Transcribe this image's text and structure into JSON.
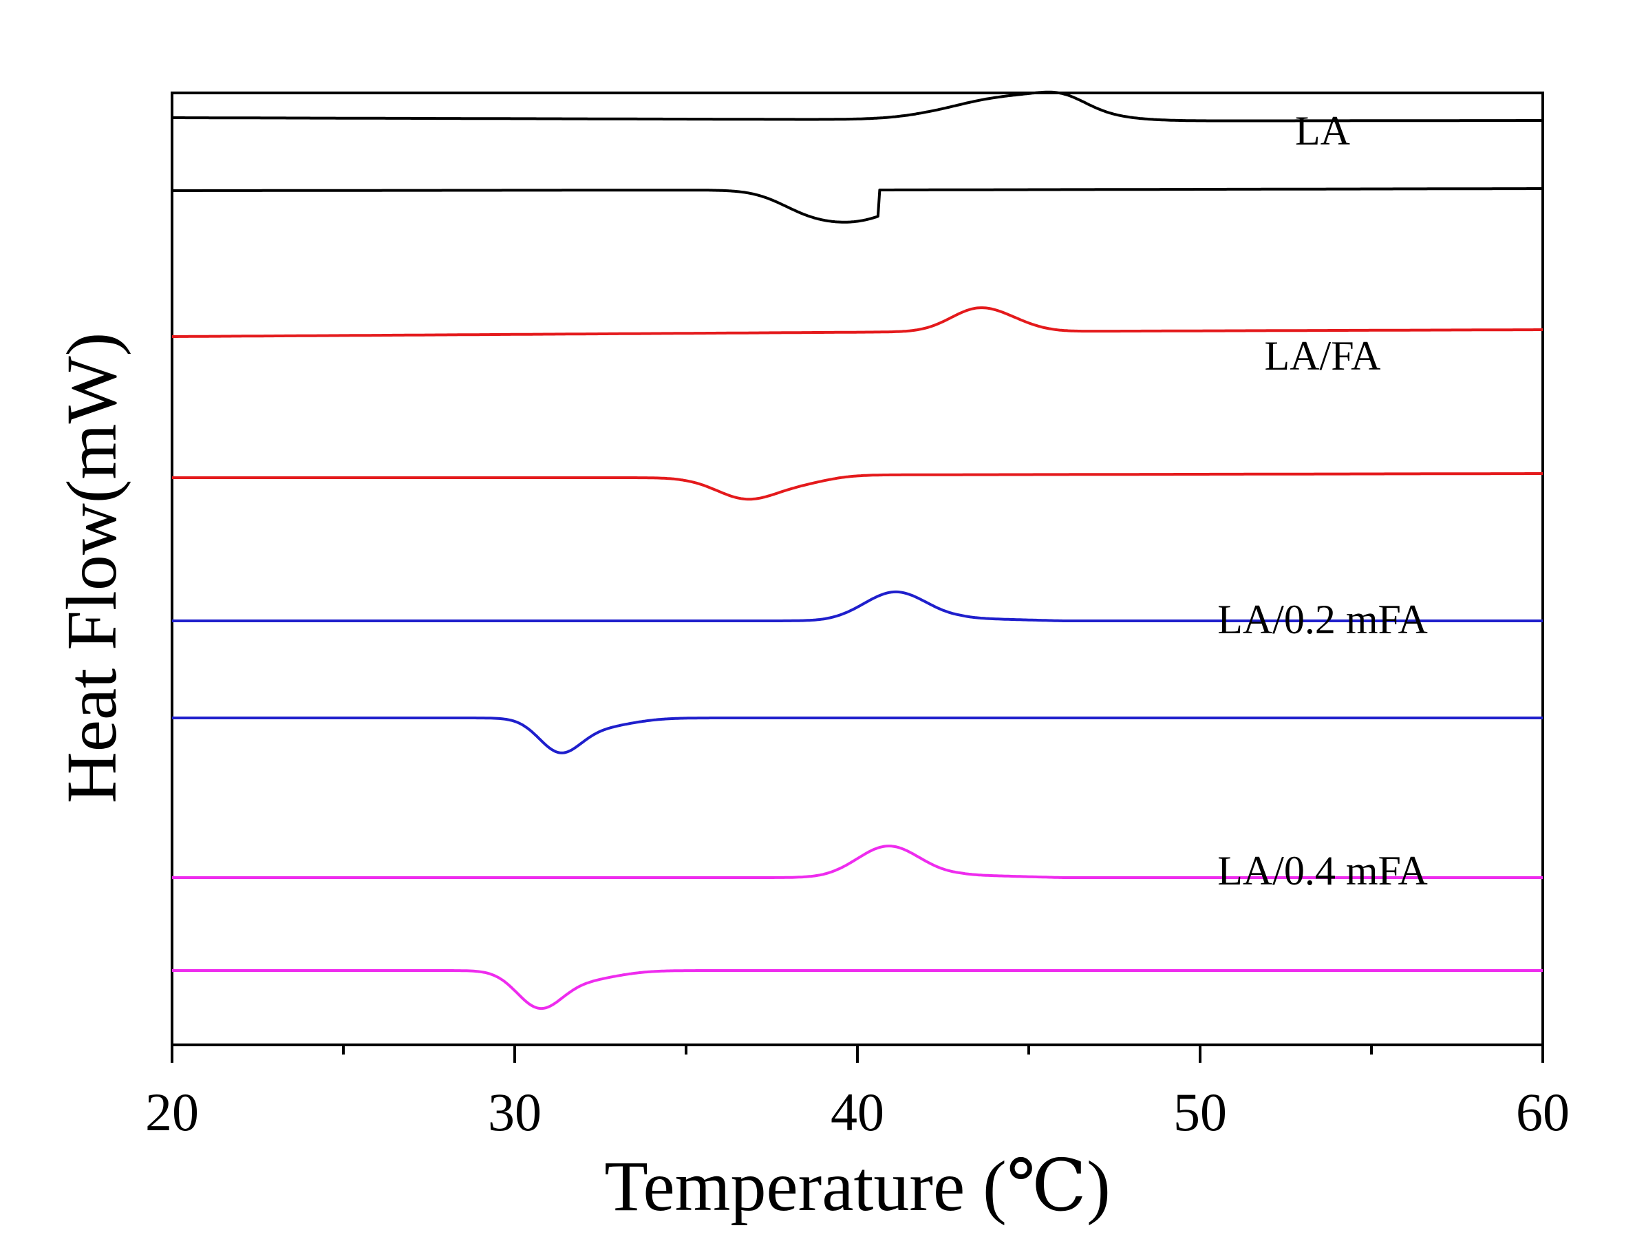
{
  "chart_data": {
    "type": "line",
    "title": "",
    "xlabel": "Temperature (℃)",
    "ylabel": "Heat Flow(mW)",
    "xlim": [
      20,
      60
    ],
    "xticks": [
      20,
      30,
      40,
      50,
      60
    ],
    "minor_xticks": [
      25,
      35,
      45,
      55
    ],
    "grid": false,
    "y_units": "arbitrary offset (curves stacked, y axis has no tick values)",
    "series": [
      {
        "name": "LA",
        "color": "#000000",
        "label": "LA",
        "heating": {
          "baseline": [
            [
              20,
              91
            ],
            [
              42,
              88
            ],
            [
              44,
              86
            ],
            [
              60,
              87
            ]
          ],
          "peaks": [
            {
              "x": 44.6,
              "height": 36,
              "width": 1.7
            },
            {
              "x": 46.0,
              "height": 14,
              "width": 0.7
            }
          ]
        },
        "cooling": {
          "baseline": [
            [
              20,
              0
            ],
            [
              37.5,
              1
            ],
            [
              40.6,
              1
            ],
            [
              60,
              3
            ]
          ],
          "peaks": [
            {
              "x": 39.9,
              "height": -44,
              "width": 1.3
            },
            {
              "x": 38.4,
              "height": -12,
              "width": 0.8
            }
          ],
          "sharp_return_at": 40.6
        }
      },
      {
        "name": "LA/FA",
        "color": "#e41a1c",
        "label": "LA/FA",
        "heating": {
          "baseline": [
            [
              20,
              106
            ],
            [
              42,
              113
            ],
            [
              60,
              116
            ]
          ],
          "peaks": [
            {
              "x": 43.5,
              "height": 32,
              "width": 0.8
            },
            {
              "x": 44.6,
              "height": 8,
              "width": 0.7
            }
          ]
        },
        "cooling": {
          "baseline": [
            [
              20,
              0
            ],
            [
              35,
              0
            ],
            [
              39.5,
              4
            ],
            [
              60,
              6
            ]
          ],
          "peaks": [
            {
              "x": 36.8,
              "height": -32,
              "width": 0.9
            },
            {
              "x": 38.5,
              "height": -8,
              "width": 0.8
            }
          ]
        }
      },
      {
        "name": "LA/0.2 mFA",
        "color": "#1f1fcc",
        "label": "LA/0.2 mFA",
        "heating": {
          "baseline": [
            [
              20,
              76
            ],
            [
              39,
              76
            ],
            [
              43,
              80
            ],
            [
              46,
              76
            ],
            [
              60,
              76
            ]
          ],
          "peaks": [
            {
              "x": 41.1,
              "height": 40,
              "width": 0.9
            }
          ]
        },
        "cooling": {
          "baseline": [
            [
              20,
              0
            ],
            [
              60,
              0
            ]
          ],
          "peaks": [
            {
              "x": 31.3,
              "height": -42,
              "width": 0.6
            },
            {
              "x": 32.3,
              "height": -14,
              "width": 1.0
            }
          ]
        }
      },
      {
        "name": "LA/0.4 mFA",
        "color": "#ee2cee",
        "label": "LA/0.4 mFA",
        "heating": {
          "baseline": [
            [
              20,
              72
            ],
            [
              39,
              72
            ],
            [
              43,
              76
            ],
            [
              46,
              72
            ],
            [
              60,
              72
            ]
          ],
          "peaks": [
            {
              "x": 40.9,
              "height": 44,
              "width": 0.9
            }
          ]
        },
        "cooling": {
          "baseline": [
            [
              20,
              0
            ],
            [
              60,
              0
            ]
          ],
          "peaks": [
            {
              "x": 30.7,
              "height": -48,
              "width": 0.65
            },
            {
              "x": 31.9,
              "height": -14,
              "width": 1.0
            }
          ]
        }
      }
    ]
  }
}
